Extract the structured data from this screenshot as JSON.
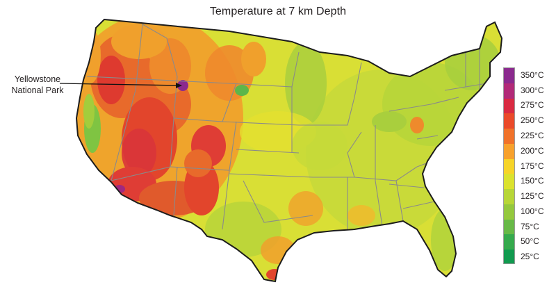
{
  "title": "Temperature at 7 km Depth",
  "callout": {
    "line1": "Yellowstone",
    "line2": "National Park"
  },
  "legend": {
    "items": [
      {
        "label": "350°C",
        "color": "#8b2a8e"
      },
      {
        "label": "300°C",
        "color": "#b22a78"
      },
      {
        "label": "275°C",
        "color": "#d92a42"
      },
      {
        "label": "250°C",
        "color": "#ea4a2a"
      },
      {
        "label": "225°C",
        "color": "#f0722a"
      },
      {
        "label": "200°C",
        "color": "#f7a12c"
      },
      {
        "label": "175°C",
        "color": "#f6d428"
      },
      {
        "label": "150°C",
        "color": "#dbe22e"
      },
      {
        "label": "125°C",
        "color": "#b7d637"
      },
      {
        "label": "100°C",
        "color": "#94c83d"
      },
      {
        "label": "75°C",
        "color": "#67b947"
      },
      {
        "label": "50°C",
        "color": "#35aa4d"
      },
      {
        "label": "25°C",
        "color": "#119a4f"
      }
    ]
  },
  "colors": {
    "state_border": "#8a8a8a",
    "outline": "#1c1c1c"
  }
}
